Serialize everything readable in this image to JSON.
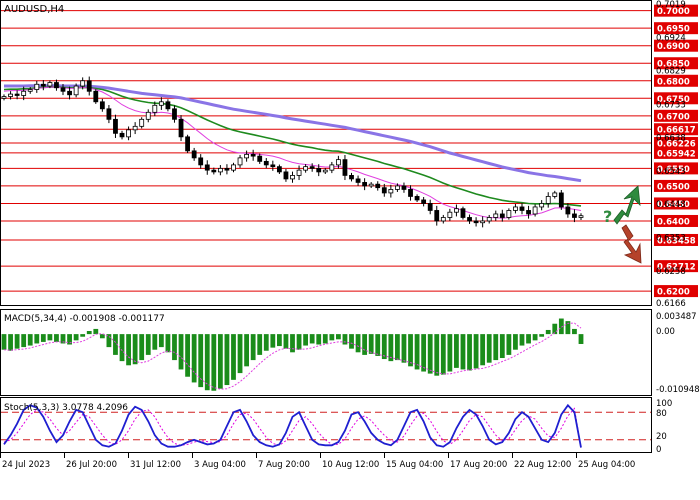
{
  "symbol_label": "AUDUSD,H4",
  "colors": {
    "candle": "#000000",
    "sma_fast": "#e040e0",
    "sma_mid": "#1e8a1e",
    "sma_slow": "#8a74e6",
    "level_line": "#e00000",
    "level_label_bg": "#e00000",
    "level_label_text": "#ffffff",
    "macd_hist": "#1a8c1a",
    "macd_signal": "#e040e0",
    "stoch_main": "#1f1fd0",
    "stoch_signal": "#e000e0",
    "up_arrow": "#2e8b3e",
    "down_arrow": "#b5422a"
  },
  "price_panel": {
    "axis_prices": [
      "0.7019",
      "0.6924",
      "0.6829",
      "0.6733",
      "0.6638",
      "0.6543",
      "0.6448",
      "0.6353",
      "0.6258",
      "0.6166"
    ],
    "levels": [
      "0.7000",
      "0.6950",
      "0.6900",
      "0.6850",
      "0.6800",
      "0.6750",
      "0.6700",
      "0.66617",
      "0.66226",
      "0.65942",
      "0.6550",
      "0.6500",
      "0.6450",
      "0.6400",
      "0.63458",
      "0.62712",
      "0.6200"
    ],
    "question_mark": "?",
    "up_arrow_icon": "up-arrow-icon",
    "down_arrow_icon": "down-arrow-icon"
  },
  "macd_panel": {
    "label": "MACD(5,34,4) -0.001908 -0.001177",
    "axis_labels": [
      "0.003487",
      "0.00",
      "-0.010948"
    ]
  },
  "stoch_panel": {
    "label": "Stoch(5,3,3) 3.0778 4.2096",
    "axis_labels": [
      "100",
      "80",
      "20",
      "0"
    ],
    "levels": [
      80,
      20
    ]
  },
  "x_axis": {
    "labels": [
      "24 Jul 2023",
      "26 Jul 20:00",
      "31 Jul 12:00",
      "3 Aug 04:00",
      "7 Aug 20:00",
      "10 Aug 12:00",
      "15 Aug 04:00",
      "17 Aug 20:00",
      "22 Aug 12:00",
      "25 Aug 04:00"
    ]
  },
  "chart_data": {
    "type": "candlestick",
    "symbol": "AUDUSD",
    "timeframe": "H4",
    "price_range": [
      0.6166,
      0.7019
    ],
    "close": [
      0.6755,
      0.6762,
      0.6758,
      0.677,
      0.6775,
      0.679,
      0.6785,
      0.6795,
      0.678,
      0.677,
      0.676,
      0.6785,
      0.68,
      0.677,
      0.674,
      0.672,
      0.669,
      0.665,
      0.664,
      0.666,
      0.667,
      0.669,
      0.671,
      0.673,
      0.674,
      0.672,
      0.669,
      0.664,
      0.66,
      0.658,
      0.656,
      0.6545,
      0.654,
      0.655,
      0.6545,
      0.656,
      0.658,
      0.659,
      0.6585,
      0.657,
      0.656,
      0.6555,
      0.654,
      0.652,
      0.653,
      0.6545,
      0.6555,
      0.655,
      0.654,
      0.6545,
      0.656,
      0.6575,
      0.653,
      0.652,
      0.651,
      0.65,
      0.6505,
      0.6495,
      0.648,
      0.649,
      0.65,
      0.649,
      0.647,
      0.646,
      0.645,
      0.643,
      0.64,
      0.641,
      0.6425,
      0.6435,
      0.641,
      0.64,
      0.6395,
      0.64,
      0.641,
      0.642,
      0.641,
      0.643,
      0.644,
      0.643,
      0.642,
      0.644,
      0.645,
      0.647,
      0.648,
      0.644,
      0.642,
      0.641,
      0.6415
    ],
    "sma_fast": [
      0.677,
      0.6772,
      0.6772,
      0.6773,
      0.6775,
      0.6778,
      0.678,
      0.6782,
      0.6782,
      0.678,
      0.6778,
      0.6779,
      0.6781,
      0.6779,
      0.6775,
      0.6768,
      0.6758,
      0.6745,
      0.6732,
      0.6722,
      0.6715,
      0.671,
      0.6708,
      0.6708,
      0.671,
      0.6708,
      0.6703,
      0.6693,
      0.668,
      0.6665,
      0.665,
      0.6635,
      0.6622,
      0.6612,
      0.6603,
      0.6597,
      0.6594,
      0.6593,
      0.6592,
      0.659,
      0.6588,
      0.6585,
      0.658,
      0.6573,
      0.6567,
      0.6563,
      0.6561,
      0.6559,
      0.6556,
      0.6554,
      0.6554,
      0.6556,
      0.6552,
      0.6546,
      0.654,
      0.6533,
      0.6527,
      0.6521,
      0.6514,
      0.6508,
      0.6504,
      0.65,
      0.6494,
      0.6487,
      0.6479,
      0.647,
      0.6458,
      0.6448,
      0.6441,
      0.6436,
      0.643,
      0.6424,
      0.6418,
      0.6413,
      0.641,
      0.6409,
      0.6408,
      0.641,
      0.6413,
      0.6415,
      0.6416,
      0.6419,
      0.6423,
      0.643,
      0.6437,
      0.6438,
      0.6436,
      0.6433,
      0.643
    ],
    "sma_mid": [
      0.6775,
      0.6776,
      0.6776,
      0.6777,
      0.6778,
      0.678,
      0.6781,
      0.6782,
      0.6782,
      0.6781,
      0.678,
      0.678,
      0.6781,
      0.678,
      0.6778,
      0.6775,
      0.677,
      0.6763,
      0.6756,
      0.675,
      0.6745,
      0.6741,
      0.6738,
      0.6736,
      0.6735,
      0.6733,
      0.6729,
      0.6723,
      0.6715,
      0.6706,
      0.6697,
      0.6688,
      0.668,
      0.6672,
      0.6665,
      0.6659,
      0.6654,
      0.665,
      0.6646,
      0.6642,
      0.6638,
      0.6634,
      0.6629,
      0.6624,
      0.6619,
      0.6615,
      0.6612,
      0.6609,
      0.6605,
      0.6602,
      0.66,
      0.6599,
      0.6595,
      0.659,
      0.6585,
      0.658,
      0.6575,
      0.657,
      0.6564,
      0.6559,
      0.6554,
      0.6549,
      0.6543,
      0.6537,
      0.6531,
      0.6524,
      0.6516,
      0.6508,
      0.6501,
      0.6495,
      0.6489,
      0.6483,
      0.6477,
      0.6472,
      0.6467,
      0.6463,
      0.6459,
      0.6456,
      0.6454,
      0.6452,
      0.645,
      0.6449,
      0.6449,
      0.6449,
      0.645,
      0.6449,
      0.6447,
      0.6445,
      0.6443
    ],
    "sma_slow": [
      0.6785,
      0.6785,
      0.6785,
      0.6785,
      0.6786,
      0.6786,
      0.6786,
      0.6786,
      0.6786,
      0.6785,
      0.6785,
      0.6785,
      0.6785,
      0.6784,
      0.6783,
      0.6781,
      0.6779,
      0.6776,
      0.6773,
      0.677,
      0.6767,
      0.6764,
      0.6762,
      0.676,
      0.6758,
      0.6756,
      0.6754,
      0.6751,
      0.6747,
      0.6743,
      0.6739,
      0.6735,
      0.6731,
      0.6727,
      0.6723,
      0.6719,
      0.6716,
      0.6713,
      0.671,
      0.6707,
      0.6704,
      0.6701,
      0.6698,
      0.6694,
      0.6691,
      0.6688,
      0.6685,
      0.6682,
      0.6679,
      0.6676,
      0.6673,
      0.667,
      0.6667,
      0.6663,
      0.6659,
      0.6655,
      0.6651,
      0.6647,
      0.6643,
      0.6639,
      0.6635,
      0.6631,
      0.6627,
      0.6622,
      0.6617,
      0.6612,
      0.6606,
      0.66,
      0.6594,
      0.6589,
      0.6584,
      0.6579,
      0.6574,
      0.6569,
      0.6564,
      0.6559,
      0.6554,
      0.655,
      0.6546,
      0.6542,
      0.6538,
      0.6535,
      0.6532,
      0.6529,
      0.6527,
      0.6524,
      0.6521,
      0.6518,
      0.6515
    ],
    "macd_hist": [
      -0.003,
      -0.0032,
      -0.0028,
      -0.0025,
      -0.0022,
      -0.0018,
      -0.0015,
      -0.0012,
      -0.0015,
      -0.0018,
      -0.002,
      -0.0012,
      -0.0005,
      0.0006,
      0.001,
      -0.0008,
      -0.0025,
      -0.004,
      -0.0052,
      -0.006,
      -0.0058,
      -0.005,
      -0.004,
      -0.003,
      -0.0025,
      -0.0035,
      -0.005,
      -0.0068,
      -0.0082,
      -0.0093,
      -0.0102,
      -0.0108,
      -0.0109,
      -0.0105,
      -0.0098,
      -0.0088,
      -0.0075,
      -0.0062,
      -0.005,
      -0.004,
      -0.0032,
      -0.0026,
      -0.0023,
      -0.0028,
      -0.0035,
      -0.003,
      -0.0022,
      -0.0018,
      -0.002,
      -0.0018,
      -0.0012,
      -0.001,
      -0.002,
      -0.0028,
      -0.0035,
      -0.004,
      -0.0038,
      -0.0042,
      -0.0048,
      -0.0052,
      -0.005,
      -0.0055,
      -0.0062,
      -0.0068,
      -0.0072,
      -0.0076,
      -0.008,
      -0.0078,
      -0.0072,
      -0.0065,
      -0.0068,
      -0.007,
      -0.0066,
      -0.006,
      -0.0055,
      -0.005,
      -0.0046,
      -0.004,
      -0.003,
      -0.0022,
      -0.0018,
      -0.0012,
      -0.0005,
      0.0008,
      0.002,
      0.003,
      0.0025,
      0.001,
      -0.0019
    ],
    "stoch_main": [
      10,
      30,
      55,
      85,
      95,
      90,
      70,
      40,
      15,
      30,
      60,
      85,
      80,
      50,
      20,
      8,
      5,
      12,
      40,
      75,
      92,
      85,
      60,
      30,
      12,
      5,
      5,
      8,
      15,
      20,
      15,
      10,
      12,
      20,
      50,
      80,
      85,
      60,
      30,
      15,
      8,
      5,
      10,
      35,
      70,
      80,
      50,
      20,
      10,
      8,
      8,
      15,
      40,
      75,
      80,
      60,
      35,
      20,
      12,
      8,
      20,
      50,
      80,
      85,
      60,
      25,
      8,
      5,
      15,
      45,
      70,
      85,
      75,
      50,
      20,
      10,
      15,
      35,
      65,
      80,
      70,
      45,
      20,
      15,
      35,
      75,
      95,
      80,
      3
    ],
    "stoch_signal": [
      15,
      20,
      35,
      55,
      75,
      85,
      80,
      65,
      45,
      30,
      40,
      58,
      75,
      70,
      50,
      30,
      15,
      10,
      20,
      40,
      65,
      82,
      85,
      70,
      45,
      25,
      12,
      8,
      10,
      15,
      18,
      16,
      14,
      16,
      30,
      55,
      75,
      78,
      65,
      45,
      25,
      12,
      8,
      18,
      40,
      62,
      70,
      55,
      35,
      20,
      10,
      10,
      22,
      45,
      65,
      72,
      62,
      45,
      30,
      18,
      15,
      28,
      52,
      72,
      78,
      62,
      38,
      18,
      10,
      20,
      40,
      62,
      75,
      70,
      50,
      30,
      18,
      22,
      42,
      62,
      72,
      65,
      45,
      28,
      25,
      45,
      72,
      88,
      4
    ]
  }
}
